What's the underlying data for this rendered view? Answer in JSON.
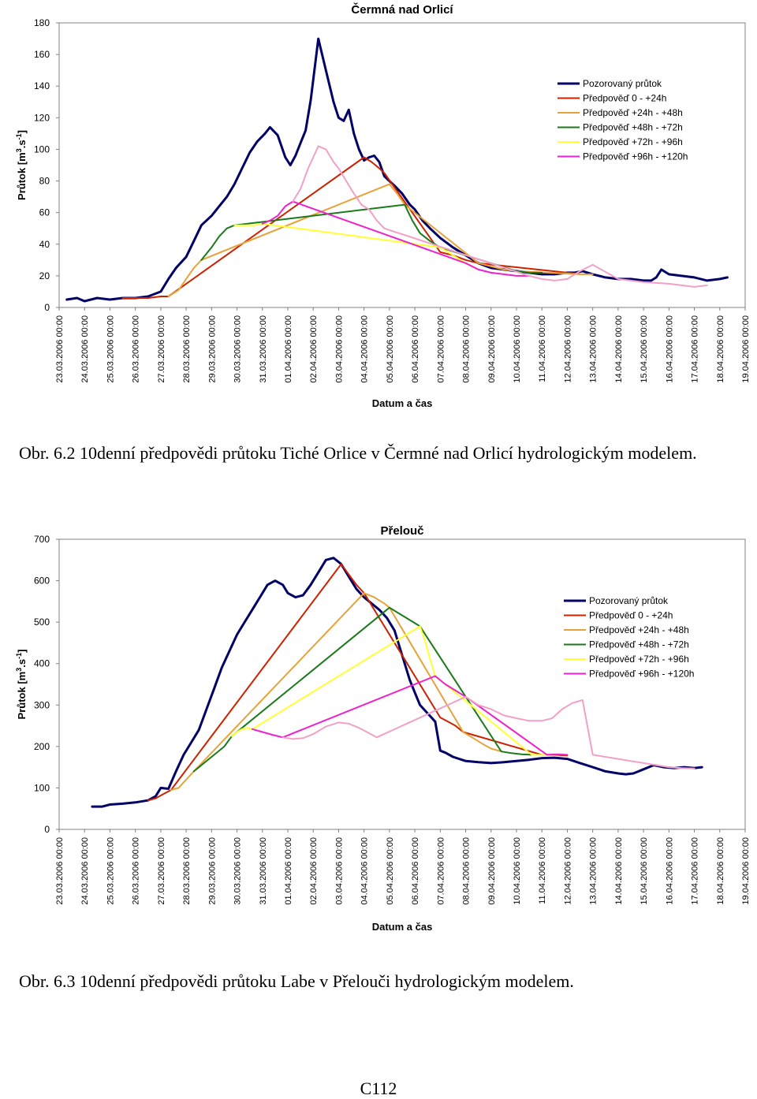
{
  "captions": {
    "fig1": "Obr. 6.2 10denní předpovědi průtoku Tiché Orlice v Čermné nad Orlicí hydrologickým modelem.",
    "fig2": "Obr. 6.3 10denní předpovědi průtoku Labe v Přelouči hydrologickým modelem."
  },
  "page_number": "C112",
  "chart_data": [
    {
      "type": "line",
      "title": "Čermná nad Orlicí",
      "xlabel": "Datum a čas",
      "ylabel_main": "Průtok [m",
      "ylabel_sup1": "3",
      "ylabel_mid": ".s",
      "ylabel_sup2": "-1",
      "ylabel_end": "]",
      "ylim": [
        0,
        180
      ],
      "yticks": [
        0,
        20,
        40,
        60,
        80,
        100,
        120,
        140,
        160,
        180
      ],
      "xlim": [
        0,
        27
      ],
      "categories": [
        "23.03.2006 00:00",
        "24.03.2006 00:00",
        "25.03.2006 00:00",
        "26.03.2006 00:00",
        "27.03.2006 00:00",
        "28.03.2006 00:00",
        "29.03.2006 00:00",
        "30.03.2006 00:00",
        "31.03.2006 00:00",
        "01.04.2006 00:00",
        "02.04.2006 00:00",
        "03.04.2006 00:00",
        "04.04.2006 00:00",
        "05.04.2006 00:00",
        "06.04.2006 00:00",
        "07.04.2006 00:00",
        "08.04.2006 00:00",
        "09.04.2006 00:00",
        "10.04.2006 00:00",
        "11.04.2006 00:00",
        "12.04.2006 00:00",
        "13.04.2006 00:00",
        "14.04.2006 00:00",
        "15.04.2006 00:00",
        "16.04.2006 00:00",
        "17.04.2006 00:00",
        "18.04.2006 00:00",
        "19.04.2006 00:00"
      ],
      "grid": false,
      "legend_position": "top-right",
      "series": [
        {
          "name": "Pozorovaný průtok",
          "color": "#000066",
          "x": [
            0.3,
            0.7,
            1.0,
            1.5,
            2.0,
            2.5,
            3.0,
            3.5,
            4.0,
            4.3,
            4.6,
            5.0,
            5.3,
            5.6,
            6.0,
            6.3,
            6.6,
            6.9,
            7.2,
            7.5,
            7.8,
            8.1,
            8.3,
            8.6,
            8.9,
            9.1,
            9.3,
            9.5,
            9.7,
            9.9,
            10.2,
            10.5,
            10.8,
            11.0,
            11.2,
            11.4,
            11.6,
            11.8,
            12.0,
            12.2,
            12.4,
            12.6,
            12.8,
            13.0,
            13.2,
            13.5,
            13.8,
            14.0,
            14.3,
            14.6,
            15.0,
            15.5,
            16.0,
            16.5,
            17.0,
            17.5,
            18.0,
            18.5,
            19.0,
            19.5,
            20.0,
            20.3,
            20.6,
            21.0,
            21.5,
            22.0,
            22.5,
            23.0,
            23.3,
            23.5,
            23.7,
            24.0,
            24.5,
            25.0,
            25.5,
            26.0,
            26.3
          ],
          "y": [
            5,
            6,
            4,
            6,
            5,
            6,
            6,
            7,
            10,
            18,
            25,
            32,
            42,
            52,
            58,
            64,
            70,
            78,
            88,
            98,
            105,
            110,
            114,
            109,
            95,
            90,
            96,
            104,
            112,
            131,
            170,
            150,
            130,
            120,
            118,
            125,
            110,
            100,
            93,
            95,
            96,
            92,
            83,
            80,
            77,
            72,
            65,
            62,
            55,
            50,
            44,
            38,
            33,
            28,
            25,
            24,
            23,
            22,
            21,
            21,
            22,
            22,
            23,
            21,
            19,
            18,
            18,
            17,
            17,
            19,
            24,
            21,
            20,
            19,
            17,
            18,
            19
          ]
        },
        {
          "name": "Předpověď 0 - +24h",
          "color": "#cc2200",
          "x": [
            2.5,
            3.0,
            3.5,
            4.0,
            4.3,
            12.0,
            12.3,
            12.6,
            12.8,
            15.0,
            15.5,
            16.0,
            16.5,
            20.0,
            20.5
          ],
          "y": [
            6,
            6,
            6,
            7,
            7,
            95,
            92,
            88,
            85,
            35,
            33,
            30,
            28,
            22,
            21
          ]
        },
        {
          "name": "Předpověď +24h - +48h",
          "color": "#e8a23a",
          "x": [
            4.3,
            4.7,
            5.0,
            5.3,
            5.6,
            13.0,
            13.3,
            13.6,
            16.5,
            17.0,
            17.5,
            18.0,
            20.5,
            21.0
          ],
          "y": [
            7,
            11,
            18,
            25,
            30,
            78,
            72,
            65,
            28,
            26,
            24,
            23,
            21,
            21
          ]
        },
        {
          "name": "Předpověď +48h - +72h",
          "color": "#1a7a1a",
          "x": [
            5.6,
            6.0,
            6.3,
            6.6,
            6.9,
            13.6,
            13.9,
            14.2,
            14.6,
            15.0,
            18.0,
            18.5,
            19.0
          ],
          "y": [
            30,
            38,
            45,
            50,
            52,
            65,
            55,
            47,
            42,
            38,
            23,
            22,
            22
          ]
        },
        {
          "name": "Předpověď +72h - +96h",
          "color": "#ffff33",
          "x": [
            6.9,
            7.3,
            7.7,
            8.0,
            15.0,
            15.5,
            16.0
          ],
          "y": [
            52,
            52,
            52,
            53,
            38,
            33,
            28
          ]
        },
        {
          "name": "Předpověď +96h - +120h",
          "color": "#ee22cc",
          "x": [
            8.0,
            8.3,
            8.6,
            8.9,
            9.2,
            16.0,
            16.5,
            17.0,
            17.5,
            18.0,
            18.5
          ],
          "y": [
            53,
            55,
            58,
            64,
            67,
            28,
            24,
            22,
            21,
            20,
            20
          ]
        },
        {
          "name": "",
          "color": "#f2a0c8",
          "x": [
            9.2,
            9.5,
            9.8,
            10.2,
            10.5,
            10.8,
            11.0,
            11.3,
            11.6,
            11.9,
            12.2,
            12.5,
            12.8,
            18.5,
            19.0,
            19.5,
            20.0,
            20.5,
            21.0,
            22.0,
            23.0,
            24.0,
            25.0,
            25.5
          ],
          "y": [
            67,
            75,
            88,
            102,
            100,
            92,
            88,
            80,
            72,
            65,
            62,
            55,
            50,
            20,
            18,
            17,
            18,
            23,
            27,
            18,
            16,
            15,
            13,
            14
          ]
        }
      ]
    },
    {
      "type": "line",
      "title": "Přelouč",
      "xlabel": "Datum a čas",
      "ylabel_main": "Průtok [m",
      "ylabel_sup1": "3",
      "ylabel_mid": ".s",
      "ylabel_sup2": "-1",
      "ylabel_end": "]",
      "ylim": [
        0,
        700
      ],
      "yticks": [
        0,
        100,
        200,
        300,
        400,
        500,
        600,
        700
      ],
      "xlim": [
        0,
        27
      ],
      "categories": [
        "23.03.2006 00:00",
        "24.03.2006 00:00",
        "25.03.2006 00:00",
        "26.03.2006 00:00",
        "27.03.2006 00:00",
        "28.03.2006 00:00",
        "29.03.2006 00:00",
        "30.03.2006 00:00",
        "31.03.2006 00:00",
        "01.04.2006 00:00",
        "02.04.2006 00:00",
        "03.04.2006 00:00",
        "04.04.2006 00:00",
        "05.04.2006 00:00",
        "06.04.2006 00:00",
        "07.04.2006 00:00",
        "08.04.2006 00:00",
        "09.04.2006 00:00",
        "10.04.2006 00:00",
        "11.04.2006 00:00",
        "12.04.2006 00:00",
        "13.04.2006 00:00",
        "14.04.2006 00:00",
        "15.04.2006 00:00",
        "16.04.2006 00:00",
        "17.04.2006 00:00",
        "18.04.2006 00:00",
        "19.04.2006 00:00"
      ],
      "grid": false,
      "legend_position": "top-right",
      "series": [
        {
          "name": "Pozorovaný průtok",
          "color": "#000066",
          "x": [
            1.3,
            1.7,
            2.0,
            2.5,
            3.0,
            3.5,
            3.8,
            4.0,
            4.3,
            4.6,
            4.9,
            5.2,
            5.5,
            5.8,
            6.1,
            6.4,
            6.7,
            7.0,
            7.3,
            7.6,
            7.9,
            8.2,
            8.5,
            8.8,
            9.0,
            9.3,
            9.6,
            9.9,
            10.2,
            10.5,
            10.8,
            11.1,
            11.4,
            11.7,
            12.0,
            12.3,
            12.6,
            12.9,
            13.2,
            13.5,
            13.8,
            14.0,
            14.2,
            14.5,
            14.8,
            15.0,
            15.2,
            15.5,
            16.0,
            16.5,
            17.0,
            17.5,
            18.0,
            18.5,
            19.0,
            19.5,
            20.0,
            20.5,
            21.0,
            21.5,
            22.0,
            22.3,
            22.6,
            23.0,
            23.4,
            23.8,
            24.2,
            24.6,
            25.0,
            25.3
          ],
          "y": [
            55,
            55,
            60,
            62,
            65,
            70,
            80,
            100,
            98,
            140,
            180,
            210,
            240,
            290,
            340,
            390,
            430,
            470,
            500,
            530,
            560,
            590,
            600,
            590,
            570,
            560,
            565,
            590,
            620,
            650,
            655,
            640,
            610,
            580,
            560,
            545,
            530,
            510,
            480,
            420,
            360,
            330,
            300,
            280,
            260,
            190,
            185,
            175,
            165,
            162,
            160,
            162,
            165,
            168,
            172,
            173,
            170,
            160,
            150,
            140,
            135,
            133,
            135,
            145,
            155,
            150,
            148,
            150,
            148,
            150
          ]
        },
        {
          "name": "Předpověď 0 - +24h",
          "color": "#cc2200",
          "x": [
            3.5,
            3.8,
            4.1,
            4.4,
            11.1,
            11.4,
            11.7,
            12.0,
            15.0,
            15.3,
            15.6,
            15.9,
            19.0,
            19.5,
            20.0
          ],
          "y": [
            70,
            75,
            85,
            95,
            640,
            615,
            590,
            570,
            270,
            260,
            250,
            235,
            180,
            180,
            178
          ]
        },
        {
          "name": "Předpověď +24h - +48h",
          "color": "#e8a23a",
          "x": [
            4.4,
            4.7,
            5.0,
            5.3,
            12.0,
            12.4,
            12.8,
            13.0,
            15.9,
            16.3,
            16.7,
            17.0,
            17.4
          ],
          "y": [
            95,
            100,
            120,
            140,
            570,
            560,
            545,
            535,
            235,
            220,
            205,
            195,
            188
          ]
        },
        {
          "name": "Předpověď +48h - +72h",
          "color": "#1a7a1a",
          "x": [
            5.3,
            5.7,
            6.1,
            6.5,
            6.8,
            13.0,
            13.4,
            13.8,
            14.2,
            17.4,
            17.8,
            18.2,
            18.6
          ],
          "y": [
            140,
            160,
            180,
            200,
            225,
            535,
            520,
            505,
            490,
            188,
            184,
            181,
            180
          ]
        },
        {
          "name": "Předpověď +72h - +96h",
          "color": "#ffff33",
          "x": [
            6.8,
            7.0,
            7.2,
            7.4,
            7.6,
            14.2,
            14.4,
            14.6,
            14.8,
            18.6,
            18.9,
            19.2
          ],
          "y": [
            225,
            235,
            242,
            245,
            242,
            490,
            455,
            410,
            370,
            180,
            180,
            180
          ]
        },
        {
          "name": "Předpověď +96h - +120h",
          "color": "#ee22cc",
          "x": [
            7.6,
            8.0,
            8.4,
            8.8,
            14.8,
            15.2,
            15.6,
            16.0,
            19.2,
            19.6,
            20.0
          ],
          "y": [
            242,
            235,
            228,
            222,
            370,
            350,
            335,
            320,
            180,
            181,
            180
          ]
        },
        {
          "name": "",
          "color": "#f2a0c8",
          "x": [
            8.8,
            9.2,
            9.6,
            10.0,
            10.5,
            11.0,
            11.4,
            11.8,
            12.2,
            12.5,
            16.0,
            16.5,
            17.0,
            17.5,
            18.0,
            18.5,
            19.0,
            19.4,
            19.8,
            20.2,
            20.6,
            21.0,
            21.5,
            22.0,
            22.5,
            23.0,
            23.5,
            24.0,
            24.5,
            25.0
          ],
          "y": [
            222,
            218,
            220,
            230,
            248,
            258,
            255,
            245,
            232,
            222,
            320,
            300,
            290,
            275,
            268,
            262,
            262,
            268,
            290,
            305,
            312,
            180,
            175,
            170,
            165,
            160,
            155,
            150,
            148,
            147
          ]
        }
      ]
    }
  ]
}
